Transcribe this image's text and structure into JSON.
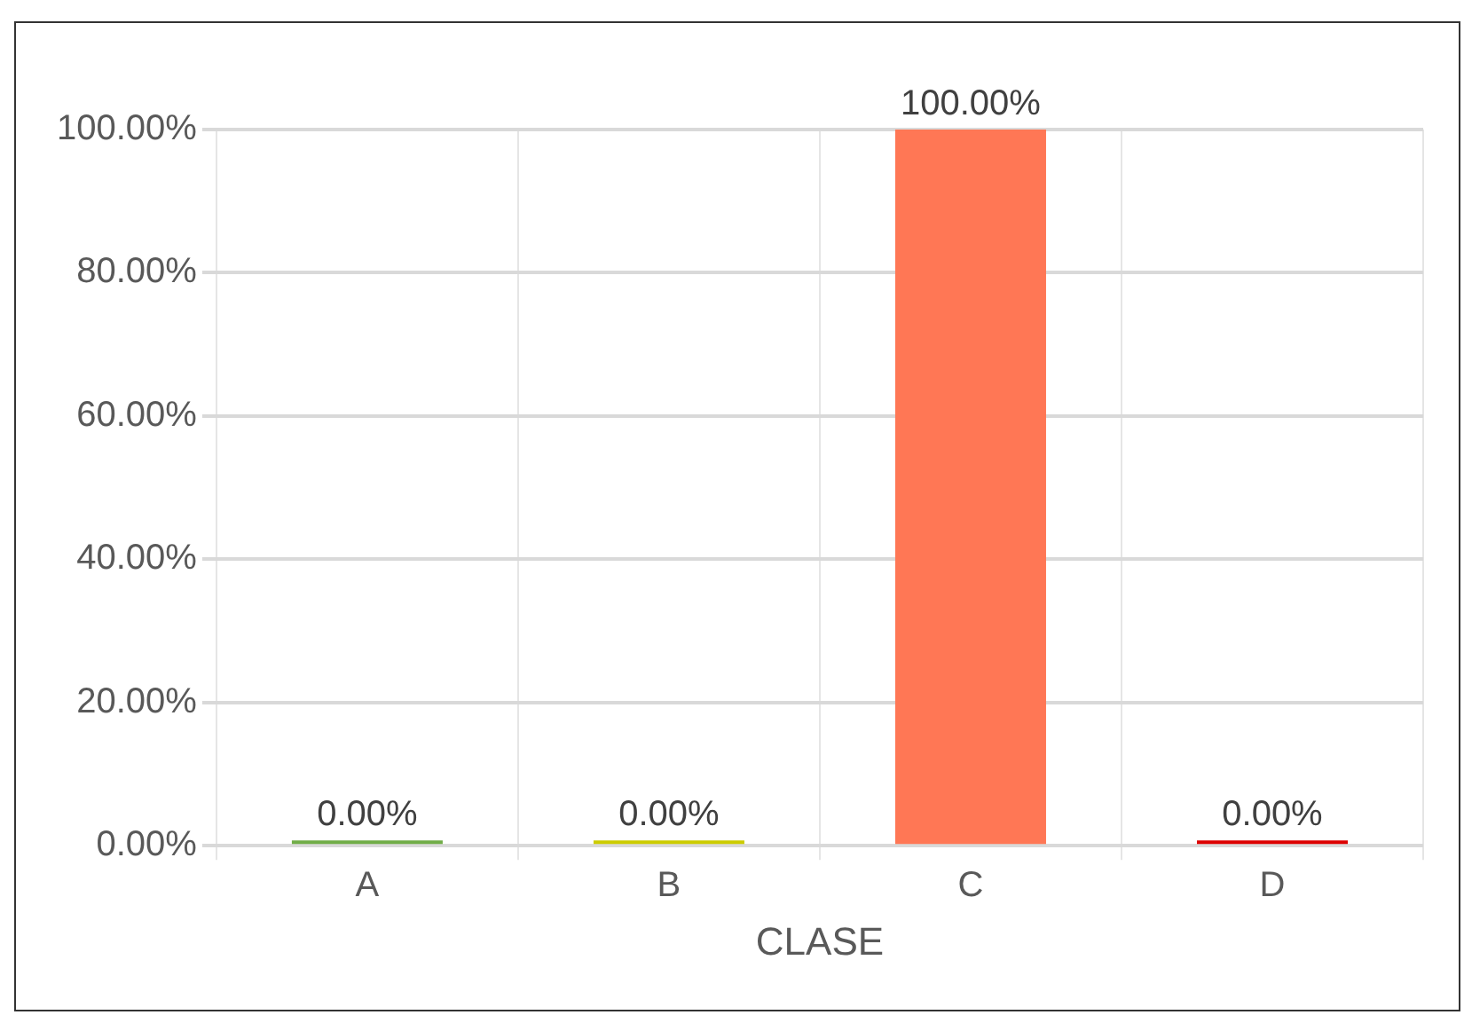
{
  "chart_data": {
    "type": "bar",
    "xlabel": "CLASE",
    "categories": [
      "A",
      "B",
      "C",
      "D"
    ],
    "values": [
      0,
      0,
      100,
      0
    ],
    "colors": [
      "#70ad47",
      "#cccc00",
      "#ff7755",
      "#dd0000"
    ],
    "value_labels": [
      "0.00%",
      "0.00%",
      "100.00%",
      "0.00%"
    ],
    "ylim": [
      0,
      100
    ],
    "yticks": [
      {
        "value": 0,
        "label": "0.00%"
      },
      {
        "value": 20,
        "label": "20.00%"
      },
      {
        "value": 40,
        "label": "40.00%"
      },
      {
        "value": 60,
        "label": "60.00%"
      },
      {
        "value": 80,
        "label": "80.00%"
      },
      {
        "value": 100,
        "label": "100.00%"
      }
    ],
    "grid": true
  }
}
